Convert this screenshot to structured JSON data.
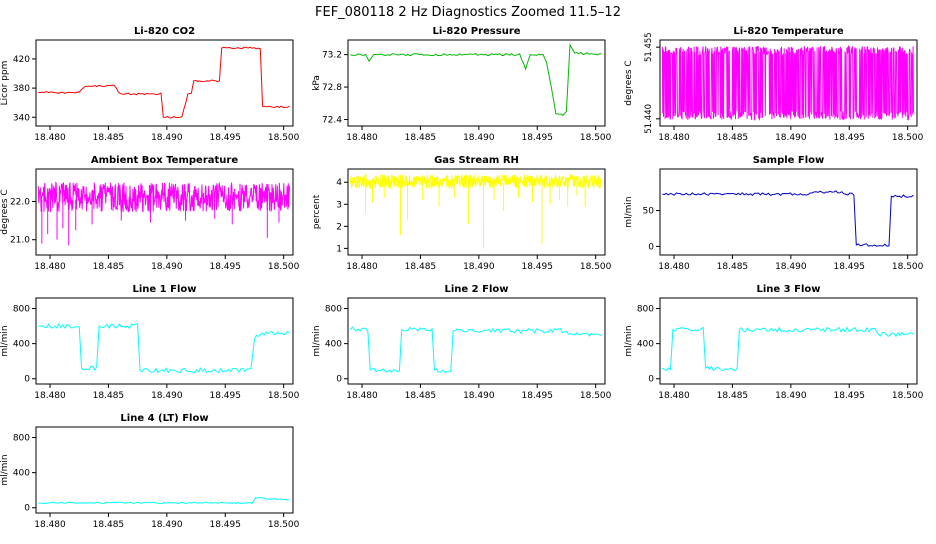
{
  "page_title": "FEF_080118  2 Hz Diagnostics Zoomed 11.5–12",
  "style": {
    "background": "#ffffff",
    "box_color": "#000000",
    "text_color": "#000000"
  },
  "axis": {
    "xlim": [
      18.4788,
      18.5008
    ],
    "xticks": [
      18.48,
      18.485,
      18.49,
      18.495,
      18.5
    ],
    "xtick_labels": [
      "18.480",
      "18.485",
      "18.490",
      "18.495",
      "18.500"
    ]
  },
  "chart_data": [
    {
      "id": "li820-co2",
      "type": "line",
      "title": "Li-820 CO2",
      "ylabel": "Licor ppm",
      "color": "#ff0000",
      "ylim": [
        328,
        446
      ],
      "yticks": [
        340,
        380,
        420
      ],
      "ytick_labels": [
        "340",
        "380",
        "420"
      ],
      "segments": [
        {
          "type": "line",
          "jitter": 1.2,
          "points": [
            [
              18.479,
              374
            ],
            [
              18.4825,
              374
            ],
            [
              18.483,
              383
            ],
            [
              18.4855,
              383
            ],
            [
              18.486,
              372
            ],
            [
              18.4895,
              372
            ],
            [
              18.4897,
              340
            ],
            [
              18.4913,
              340
            ],
            [
              18.4918,
              372
            ],
            [
              18.4921,
              373
            ],
            [
              18.4923,
              390
            ],
            [
              18.4945,
              390
            ],
            [
              18.4947,
              435
            ],
            [
              18.498,
              435
            ],
            [
              18.4982,
              355
            ],
            [
              18.5005,
              354
            ]
          ]
        }
      ]
    },
    {
      "id": "li820-pressure",
      "type": "line",
      "title": "Li-820 Pressure",
      "ylabel": "kPa",
      "color": "#00bb00",
      "ylim": [
        72.32,
        73.38
      ],
      "yticks": [
        72.4,
        72.8,
        73.2
      ],
      "ytick_labels": [
        "72.4",
        "72.8",
        "73.2"
      ],
      "segments": [
        {
          "type": "line",
          "jitter": 0.013,
          "points": [
            [
              18.479,
              73.2
            ],
            [
              18.4803,
              73.2
            ],
            [
              18.4806,
              73.12
            ],
            [
              18.481,
              73.2
            ],
            [
              18.4935,
              73.2
            ],
            [
              18.494,
              73.03
            ],
            [
              18.4944,
              73.2
            ],
            [
              18.4955,
              73.2
            ],
            [
              18.4958,
              73.1
            ],
            [
              18.4962,
              72.8
            ],
            [
              18.4966,
              72.47
            ],
            [
              18.4972,
              72.45
            ],
            [
              18.4975,
              72.5
            ],
            [
              18.4978,
              73.32
            ],
            [
              18.4982,
              73.22
            ],
            [
              18.5005,
              73.2
            ]
          ]
        }
      ]
    },
    {
      "id": "li820-temperature",
      "type": "line",
      "title": "Li-820 Temperature",
      "ylabel": "degrees C",
      "color": "#ff00ff",
      "ylim": [
        51.4385,
        51.4565
      ],
      "yticks": [
        51.44,
        51.455
      ],
      "ytick_labels": [
        "51.440",
        "51.455"
      ],
      "rotate_yticks": true,
      "segments": [
        {
          "type": "noise",
          "mode": "binary",
          "x0": 18.479,
          "x1": 18.5005,
          "ymin": 51.4398,
          "ymax": 51.4552,
          "n": 650
        }
      ]
    },
    {
      "id": "ambient-box-temperature",
      "type": "line",
      "title": "Ambient Box Temperature",
      "ylabel": "degrees C",
      "color": "#ff00ff",
      "ylim": [
        20.6,
        22.85
      ],
      "yticks": [
        21.0,
        22.0
      ],
      "ytick_labels": [
        "21.0",
        "22.0"
      ],
      "segments": [
        {
          "type": "noise",
          "mode": "uniform",
          "x0": 18.479,
          "x1": 18.5005,
          "ymin": 21.72,
          "ymax": 22.5,
          "n": 620
        },
        {
          "type": "spikes",
          "base": 22.05,
          "points": [
            [
              18.4793,
              20.9
            ],
            [
              18.4798,
              21.15
            ],
            [
              18.4806,
              21.0
            ],
            [
              18.4811,
              21.3
            ],
            [
              18.4816,
              20.85
            ],
            [
              18.4822,
              21.25
            ],
            [
              18.4836,
              21.4
            ],
            [
              18.4861,
              21.5
            ],
            [
              18.4886,
              21.45
            ],
            [
              18.4916,
              21.5
            ],
            [
              18.4941,
              21.55
            ],
            [
              18.4956,
              21.4
            ],
            [
              18.4986,
              21.05
            ],
            [
              18.4996,
              21.45
            ]
          ]
        }
      ]
    },
    {
      "id": "gas-stream-rh",
      "type": "line",
      "title": "Gas Stream RH",
      "ylabel": "percent",
      "color": "#ffff00",
      "ylim": [
        0.7,
        4.6
      ],
      "yticks": [
        1,
        2,
        3,
        4
      ],
      "ytick_labels": [
        "1",
        "2",
        "3",
        "4"
      ],
      "segments": [
        {
          "type": "noise",
          "mode": "uniform",
          "x0": 18.479,
          "x1": 18.5005,
          "ymin": 3.72,
          "ymax": 4.35,
          "n": 620
        },
        {
          "type": "spikes",
          "base": 4.0,
          "points": [
            [
              18.4803,
              2.6
            ],
            [
              18.4809,
              3.1
            ],
            [
              18.4819,
              3.3
            ],
            [
              18.4833,
              1.6
            ],
            [
              18.4839,
              2.3
            ],
            [
              18.4852,
              3.2
            ],
            [
              18.4866,
              2.9
            ],
            [
              18.4879,
              3.3
            ],
            [
              18.4891,
              2.1
            ],
            [
              18.4904,
              1.0
            ],
            [
              18.4913,
              3.2
            ],
            [
              18.4921,
              2.7
            ],
            [
              18.4934,
              3.3
            ],
            [
              18.4946,
              3.1
            ],
            [
              18.4954,
              1.2
            ],
            [
              18.4961,
              3.0
            ],
            [
              18.4969,
              3.2
            ],
            [
              18.4976,
              2.9
            ],
            [
              18.4984,
              3.4
            ],
            [
              18.4991,
              2.9
            ]
          ]
        }
      ]
    },
    {
      "id": "sample-flow",
      "type": "line",
      "title": "Sample Flow",
      "ylabel": "ml/min",
      "color": "#0000cd",
      "ylim": [
        -12,
        108
      ],
      "yticks": [
        0,
        50
      ],
      "ytick_labels": [
        "0",
        "50"
      ],
      "segments": [
        {
          "type": "line",
          "jitter": 1.8,
          "points": [
            [
              18.479,
              73
            ],
            [
              18.4915,
              73
            ],
            [
              18.492,
              76
            ],
            [
              18.4942,
              76
            ],
            [
              18.4947,
              73
            ],
            [
              18.4954,
              73
            ],
            [
              18.4956,
              2
            ],
            [
              18.4984,
              2
            ],
            [
              18.4986,
              70
            ],
            [
              18.5005,
              70
            ]
          ]
        }
      ]
    },
    {
      "id": "line-1-flow",
      "type": "line",
      "title": "Line 1 Flow",
      "ylabel": "ml/min",
      "color": "#00ffff",
      "ylim": [
        -60,
        920
      ],
      "yticks": [
        0,
        400,
        800
      ],
      "ytick_labels": [
        "0",
        "400",
        "800"
      ],
      "segments": [
        {
          "type": "line",
          "jitter": 26,
          "points": [
            [
              18.479,
              600
            ],
            [
              18.4825,
              600
            ],
            [
              18.4827,
              120
            ],
            [
              18.484,
              120
            ],
            [
              18.4842,
              600
            ],
            [
              18.4875,
              600
            ],
            [
              18.4877,
              95
            ],
            [
              18.4972,
              95
            ],
            [
              18.4975,
              450
            ],
            [
              18.498,
              520
            ],
            [
              18.5005,
              520
            ]
          ]
        }
      ]
    },
    {
      "id": "line-2-flow",
      "type": "line",
      "title": "Line 2 Flow",
      "ylabel": "ml/min",
      "color": "#00ffff",
      "ylim": [
        -60,
        920
      ],
      "yticks": [
        0,
        400,
        800
      ],
      "ytick_labels": [
        "0",
        "400",
        "800"
      ],
      "segments": [
        {
          "type": "line",
          "jitter": 26,
          "points": [
            [
              18.479,
              560
            ],
            [
              18.4805,
              560
            ],
            [
              18.4807,
              100
            ],
            [
              18.4832,
              100
            ],
            [
              18.4834,
              560
            ],
            [
              18.486,
              560
            ],
            [
              18.4862,
              100
            ],
            [
              18.4876,
              100
            ],
            [
              18.4878,
              545
            ],
            [
              18.4975,
              545
            ],
            [
              18.4977,
              505
            ],
            [
              18.5005,
              505
            ]
          ]
        }
      ]
    },
    {
      "id": "line-3-flow",
      "type": "line",
      "title": "Line 3 Flow",
      "ylabel": "ml/min",
      "color": "#00ffff",
      "ylim": [
        -60,
        920
      ],
      "yticks": [
        0,
        400,
        800
      ],
      "ytick_labels": [
        "0",
        "400",
        "800"
      ],
      "segments": [
        {
          "type": "line",
          "jitter": 26,
          "points": [
            [
              18.479,
              120
            ],
            [
              18.4797,
              120
            ],
            [
              18.4799,
              560
            ],
            [
              18.4825,
              560
            ],
            [
              18.4827,
              120
            ],
            [
              18.4854,
              120
            ],
            [
              18.4856,
              560
            ],
            [
              18.4972,
              560
            ],
            [
              18.4975,
              505
            ],
            [
              18.5005,
              505
            ]
          ]
        }
      ]
    },
    {
      "id": "line-4-lt-flow",
      "type": "line",
      "title": "Line 4 (LT) Flow",
      "ylabel": "ml/min",
      "color": "#00ffff",
      "ylim": [
        -60,
        920
      ],
      "yticks": [
        0,
        400,
        800
      ],
      "ytick_labels": [
        "0",
        "400",
        "800"
      ],
      "segments": [
        {
          "type": "line",
          "jitter": 8,
          "points": [
            [
              18.479,
              55
            ],
            [
              18.4973,
              55
            ],
            [
              18.4976,
              115
            ],
            [
              18.4983,
              115
            ],
            [
              18.4986,
              95
            ],
            [
              18.5005,
              95
            ]
          ]
        }
      ]
    }
  ]
}
